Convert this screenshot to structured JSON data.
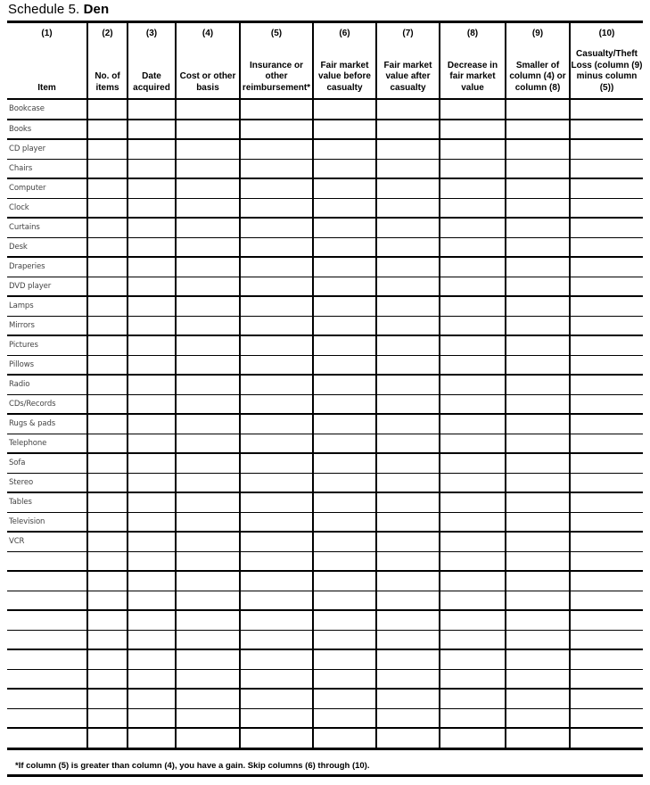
{
  "title": {
    "prefix": "Schedule 5.",
    "name": "Den"
  },
  "columns": [
    {
      "num": "(1)",
      "label": "Item"
    },
    {
      "num": "(2)",
      "label": "No. of items"
    },
    {
      "num": "(3)",
      "label": "Date acquired"
    },
    {
      "num": "(4)",
      "label": "Cost or other basis"
    },
    {
      "num": "(5)",
      "label": "Insurance or other reimbursement*"
    },
    {
      "num": "(6)",
      "label": "Fair market value before casualty"
    },
    {
      "num": "(7)",
      "label": "Fair market value after casualty"
    },
    {
      "num": "(8)",
      "label": "Decrease in fair market value"
    },
    {
      "num": "(9)",
      "label": "Smaller of column (4) or column (8)"
    },
    {
      "num": "(10)",
      "label": "Casualty/Theft Loss (column (9) minus column (5))"
    }
  ],
  "items": [
    "Bookcase",
    "Books",
    "CD player",
    "Chairs",
    "Computer",
    "Clock",
    "Curtains",
    "Desk",
    "Draperies",
    "DVD player",
    "Lamps",
    "Mirrors",
    "Pictures",
    "Pillows",
    "Radio",
    "CDs/Records",
    "Rugs & pads",
    "Telephone",
    "Sofa",
    "Stereo",
    "Tables",
    "Television",
    "VCR",
    "",
    "",
    "",
    "",
    "",
    "",
    "",
    "",
    "",
    ""
  ],
  "footnote": "*If column (5) is greater than column (4), you have a gain. Skip columns (6) through (10)."
}
